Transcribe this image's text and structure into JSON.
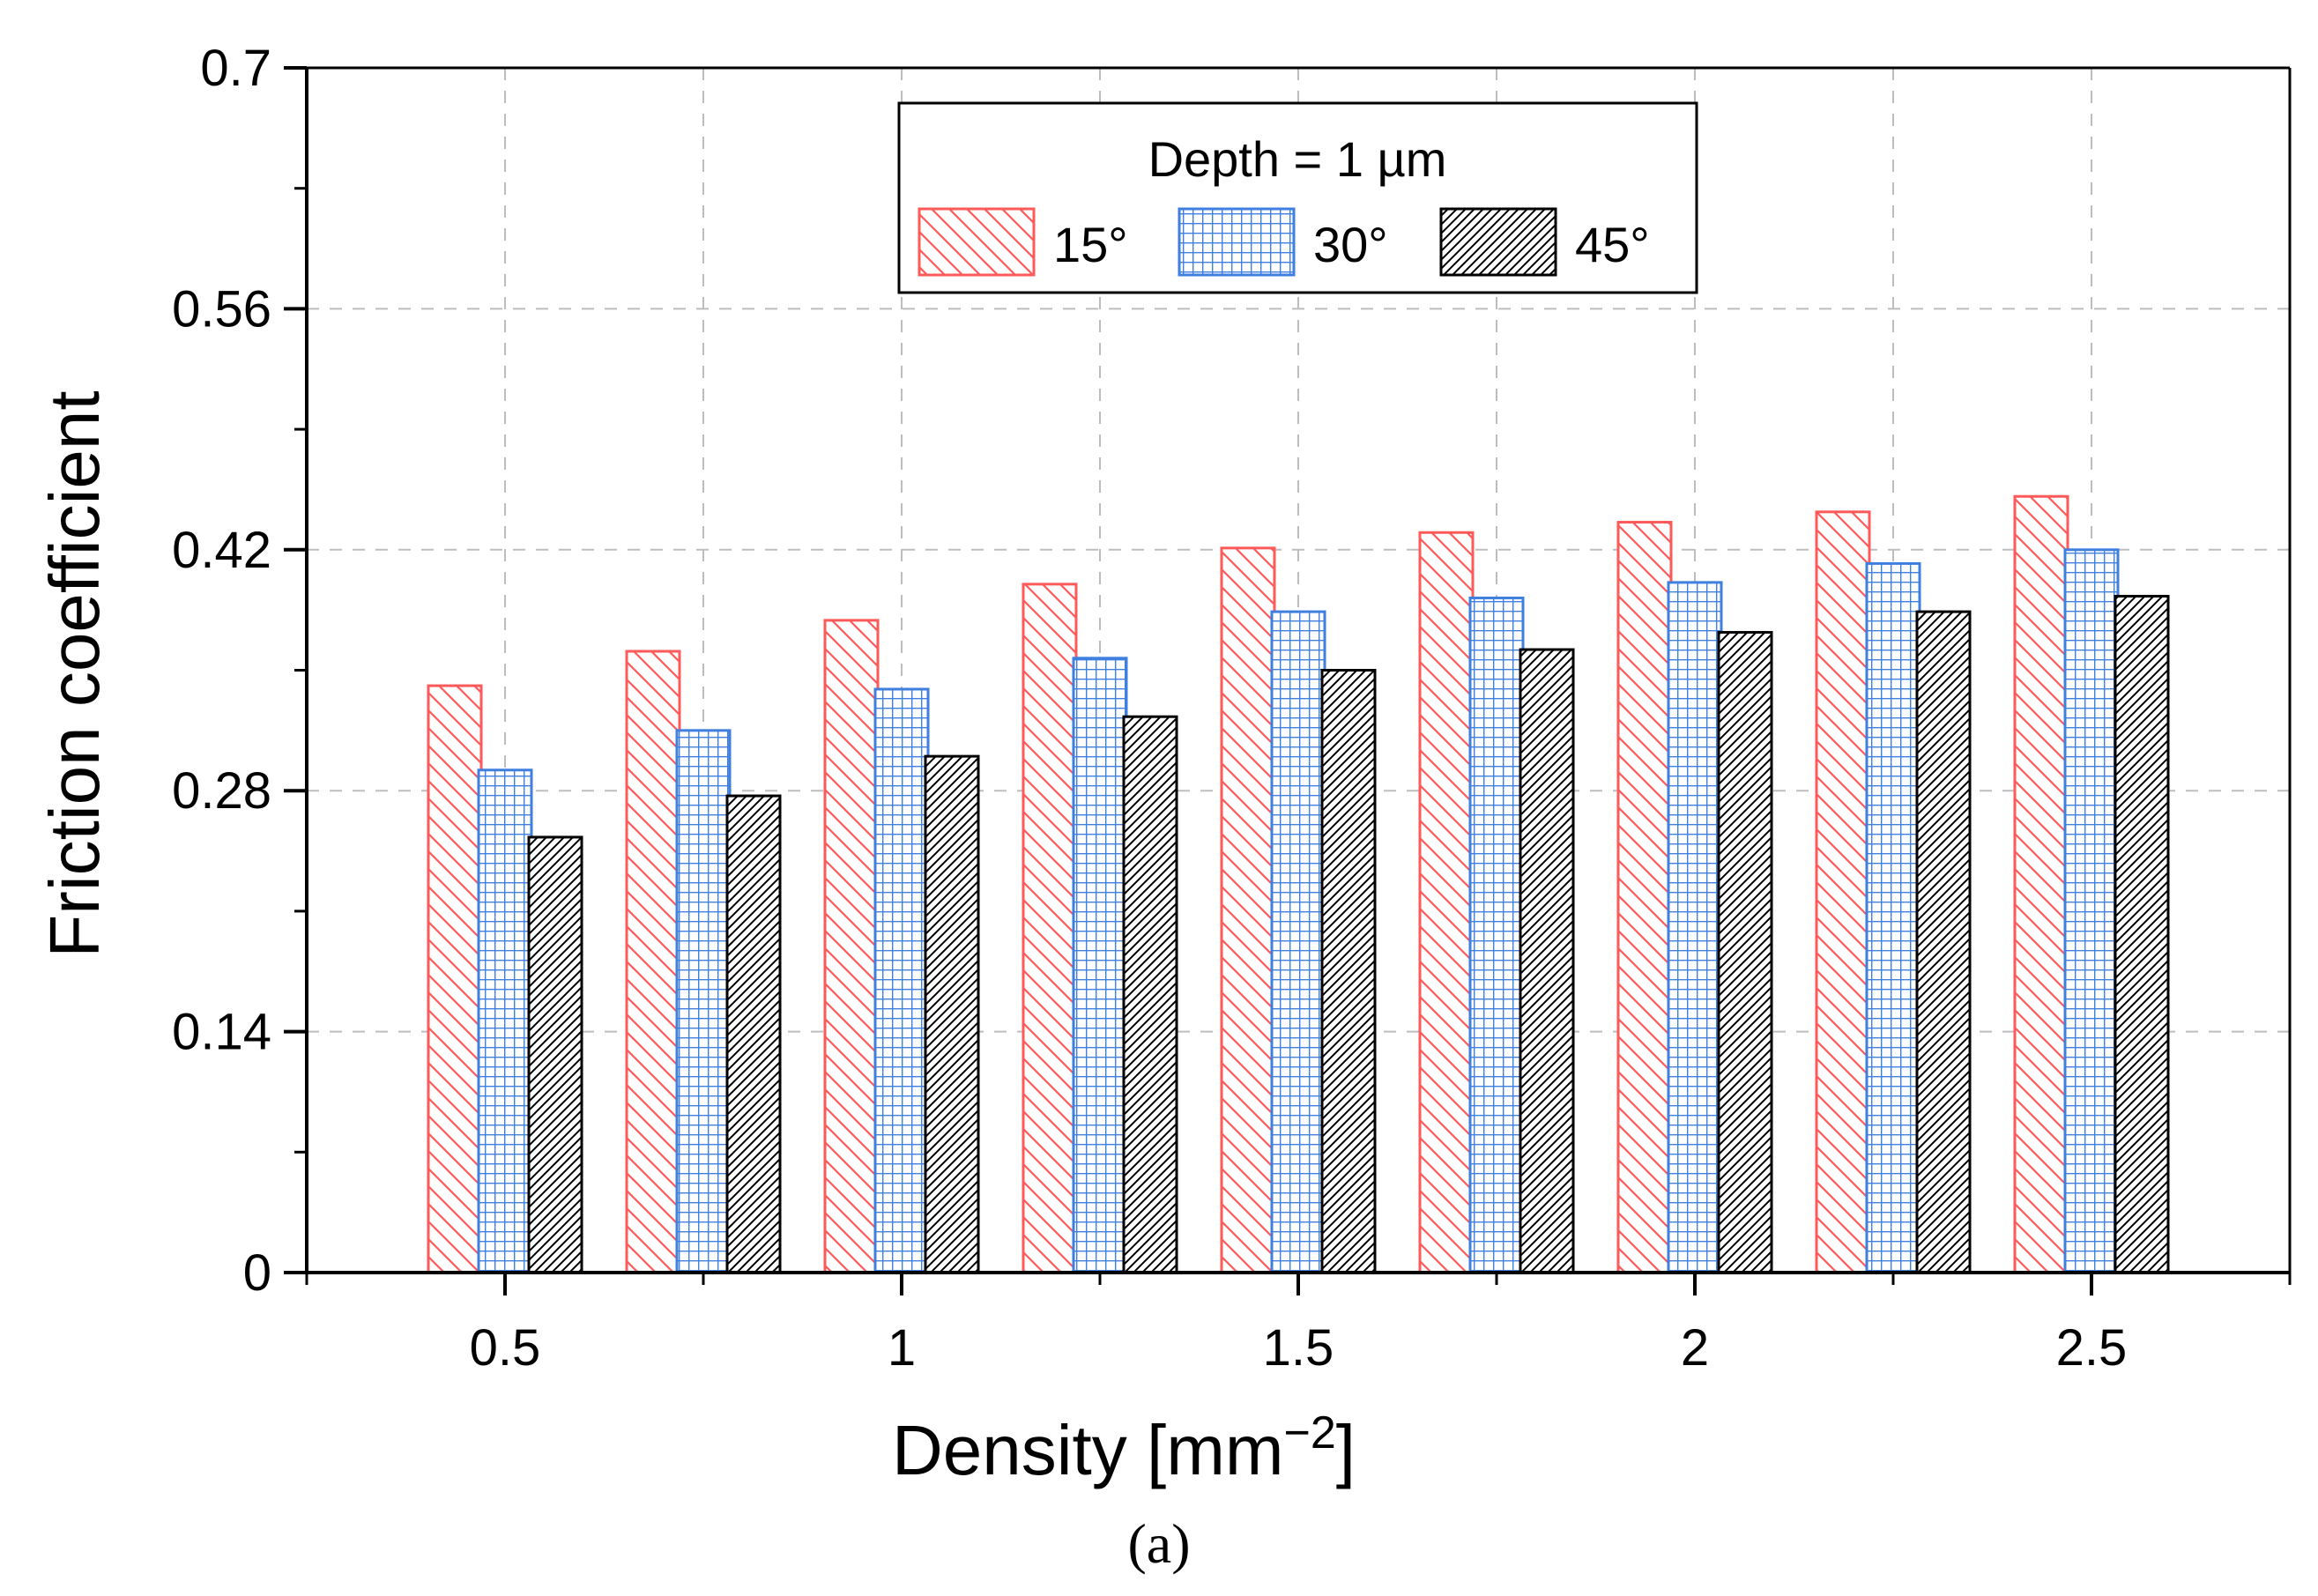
{
  "chart_data": {
    "type": "bar",
    "xlabel": "Density [mm",
    "xlabel_superscript": "−2",
    "xlabel_close": "]",
    "ylabel": "Friction coefficient",
    "ylim": [
      0,
      0.7
    ],
    "yticks": [
      "0",
      "0.14",
      "0.28",
      "0.42",
      "0.56",
      "0.7"
    ],
    "xlim": [
      0.25,
      2.75
    ],
    "xticks": [
      "0.5",
      "1",
      "1.5",
      "2",
      "2.5"
    ],
    "x": [
      0.5,
      0.75,
      1.0,
      1.25,
      1.5,
      1.75,
      2.0,
      2.25,
      2.5
    ],
    "grid": true,
    "legend": {
      "title": "Depth = 1 µm",
      "placement": "top-center"
    },
    "series": [
      {
        "name": "15°",
        "color": "#ff5a5a",
        "pattern": "backslash-hatch",
        "values": [
          0.341,
          0.361,
          0.379,
          0.4,
          0.421,
          0.43,
          0.436,
          0.442,
          0.451
        ]
      },
      {
        "name": "30°",
        "color": "#3f7fe0",
        "pattern": "grid",
        "values": [
          0.292,
          0.315,
          0.339,
          0.357,
          0.384,
          0.392,
          0.401,
          0.412,
          0.42
        ]
      },
      {
        "name": "45°",
        "color": "#000000",
        "pattern": "slash-hatch",
        "values": [
          0.253,
          0.277,
          0.3,
          0.323,
          0.35,
          0.362,
          0.372,
          0.384,
          0.393
        ]
      }
    ]
  },
  "caption": "(a)"
}
